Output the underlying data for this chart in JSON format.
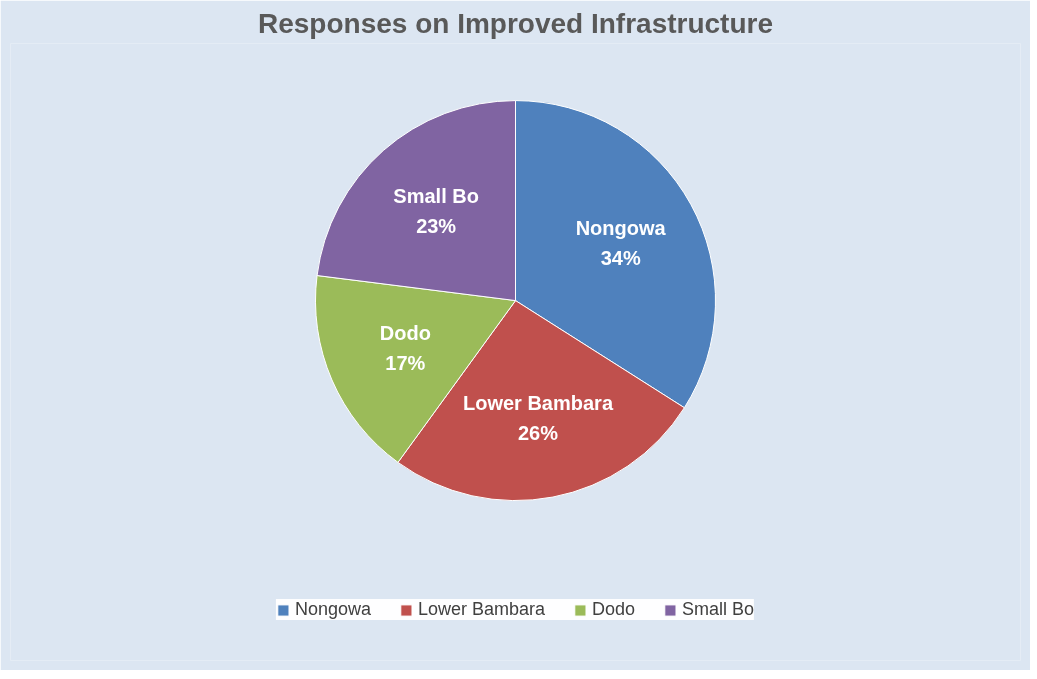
{
  "chart_data": {
    "type": "pie",
    "title": "Responses on Improved Infrastructure",
    "categories": [
      "Nongowa",
      "Lower Bambara",
      "Dodo",
      "Small Bo"
    ],
    "values": [
      34,
      26,
      17,
      23
    ],
    "value_labels": [
      "34%",
      "26%",
      "17%",
      "23%"
    ],
    "colors": [
      "#4f81bd",
      "#c0504d",
      "#9bbb59",
      "#8064a2"
    ],
    "legend": "bottom"
  }
}
